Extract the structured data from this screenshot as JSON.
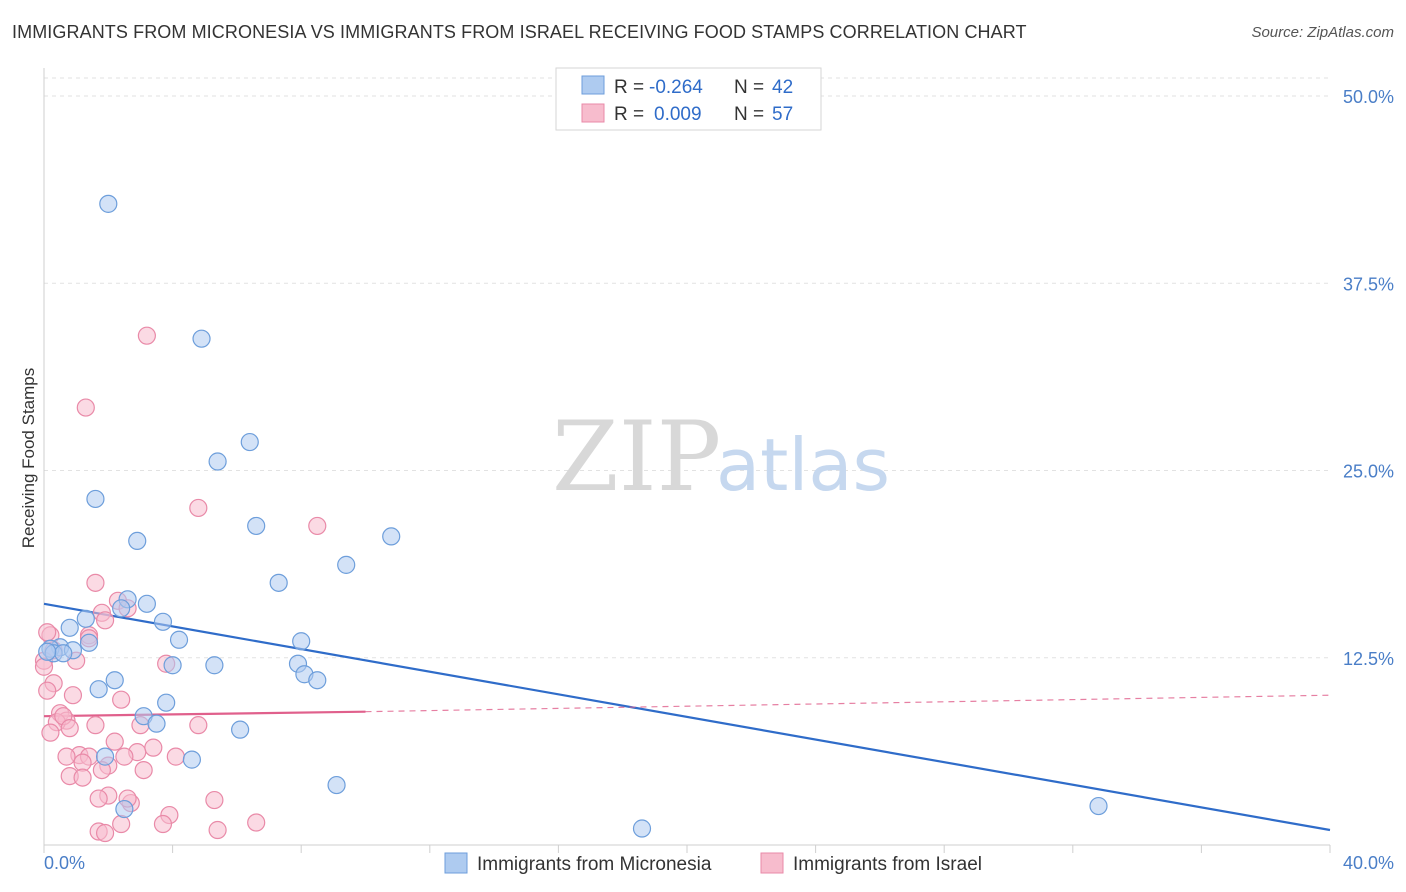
{
  "title": "IMMIGRANTS FROM MICRONESIA VS IMMIGRANTS FROM ISRAEL RECEIVING FOOD STAMPS CORRELATION CHART",
  "source": "Source: ZipAtlas.com",
  "watermark": {
    "zip": "ZIP",
    "atlas": "atlas"
  },
  "colors": {
    "micronesia_fill": "#aecbf0",
    "micronesia_stroke": "#6d9edb",
    "micronesia_line": "#2f6cc9",
    "israel_fill": "#f7bccd",
    "israel_stroke": "#e98aa8",
    "israel_line": "#e0608c",
    "grid": "#e2e2e2",
    "axis_text": "#4a7ec7"
  },
  "legend": {
    "row1": {
      "r_label": "R =",
      "r_value": "-0.264",
      "n_label": "N =",
      "n_value": "42"
    },
    "row2": {
      "r_label": "R =",
      "r_value": "0.009",
      "n_label": "N =",
      "n_value": "57"
    }
  },
  "chart_data": {
    "type": "scatter",
    "title": "IMMIGRANTS FROM MICRONESIA VS IMMIGRANTS FROM ISRAEL RECEIVING FOOD STAMPS CORRELATION CHART",
    "xlabel": "",
    "ylabel": "Receiving Food Stamps",
    "xlim": [
      0,
      40
    ],
    "ylim": [
      0,
      50
    ],
    "x_tick_labels": {
      "left": "0.0%",
      "right": "40.0%"
    },
    "y_ticks": [
      12.5,
      25.0,
      37.5,
      50.0
    ],
    "y_tick_labels": [
      "12.5%",
      "25.0%",
      "37.5%",
      "50.0%"
    ],
    "grid": true,
    "legend_position": "top-center",
    "series": [
      {
        "name": "Immigrants from Micronesia",
        "color": "#6d9edb",
        "trend": {
          "x": [
            0,
            40
          ],
          "y": [
            16.1,
            1.0
          ],
          "style": "solid"
        },
        "points": [
          [
            2.0,
            42.8
          ],
          [
            4.9,
            33.8
          ],
          [
            6.4,
            26.9
          ],
          [
            5.4,
            25.6
          ],
          [
            1.6,
            23.1
          ],
          [
            6.6,
            21.3
          ],
          [
            10.8,
            20.6
          ],
          [
            2.9,
            20.3
          ],
          [
            9.4,
            18.7
          ],
          [
            7.3,
            17.5
          ],
          [
            2.6,
            16.4
          ],
          [
            3.2,
            16.1
          ],
          [
            2.4,
            15.8
          ],
          [
            1.3,
            15.1
          ],
          [
            0.8,
            14.5
          ],
          [
            3.7,
            14.9
          ],
          [
            4.2,
            13.7
          ],
          [
            1.4,
            13.5
          ],
          [
            8.0,
            13.6
          ],
          [
            0.5,
            13.2
          ],
          [
            0.9,
            13.0
          ],
          [
            0.2,
            13.1
          ],
          [
            0.3,
            12.8
          ],
          [
            0.6,
            12.8
          ],
          [
            4.0,
            12.0
          ],
          [
            5.3,
            12.0
          ],
          [
            7.9,
            12.1
          ],
          [
            8.1,
            11.4
          ],
          [
            8.5,
            11.0
          ],
          [
            2.2,
            11.0
          ],
          [
            1.7,
            10.4
          ],
          [
            3.8,
            9.5
          ],
          [
            3.1,
            8.6
          ],
          [
            3.5,
            8.1
          ],
          [
            6.1,
            7.7
          ],
          [
            1.9,
            5.9
          ],
          [
            4.6,
            5.7
          ],
          [
            9.1,
            4.0
          ],
          [
            2.5,
            2.4
          ],
          [
            18.6,
            1.1
          ],
          [
            32.8,
            2.6
          ],
          [
            0.1,
            12.9
          ]
        ]
      },
      {
        "name": "Immigrants from Israel",
        "color": "#e98aa8",
        "trend": {
          "x": [
            0,
            10
          ],
          "y": [
            8.6,
            8.9
          ],
          "style": "solid",
          "extended": {
            "x": [
              10,
              40
            ],
            "y": [
              8.9,
              10.0
            ],
            "style": "dashed"
          }
        },
        "points": [
          [
            3.2,
            34.0
          ],
          [
            1.3,
            29.2
          ],
          [
            4.8,
            22.5
          ],
          [
            8.5,
            21.3
          ],
          [
            1.6,
            17.5
          ],
          [
            2.3,
            16.3
          ],
          [
            1.8,
            15.5
          ],
          [
            2.6,
            15.8
          ],
          [
            1.9,
            15.0
          ],
          [
            0.2,
            14.0
          ],
          [
            1.4,
            14.0
          ],
          [
            0.3,
            13.0
          ],
          [
            1.4,
            13.8
          ],
          [
            0.0,
            12.3
          ],
          [
            1.0,
            12.3
          ],
          [
            3.8,
            12.1
          ],
          [
            0.3,
            10.8
          ],
          [
            0.1,
            10.3
          ],
          [
            0.9,
            10.0
          ],
          [
            2.4,
            9.7
          ],
          [
            0.5,
            8.8
          ],
          [
            0.7,
            8.3
          ],
          [
            0.4,
            8.2
          ],
          [
            0.6,
            8.6
          ],
          [
            1.6,
            8.0
          ],
          [
            3.0,
            8.0
          ],
          [
            4.8,
            8.0
          ],
          [
            0.2,
            7.5
          ],
          [
            0.8,
            7.8
          ],
          [
            2.2,
            6.9
          ],
          [
            3.4,
            6.5
          ],
          [
            2.9,
            6.2
          ],
          [
            1.1,
            6.0
          ],
          [
            1.4,
            5.9
          ],
          [
            2.5,
            5.9
          ],
          [
            0.7,
            5.9
          ],
          [
            4.1,
            5.9
          ],
          [
            1.2,
            5.5
          ],
          [
            2.0,
            5.3
          ],
          [
            1.8,
            5.0
          ],
          [
            3.1,
            5.0
          ],
          [
            0.8,
            4.6
          ],
          [
            1.2,
            4.5
          ],
          [
            2.0,
            3.3
          ],
          [
            1.7,
            3.1
          ],
          [
            2.7,
            2.8
          ],
          [
            5.3,
            3.0
          ],
          [
            2.6,
            3.1
          ],
          [
            3.9,
            2.0
          ],
          [
            6.6,
            1.5
          ],
          [
            2.4,
            1.4
          ],
          [
            3.7,
            1.4
          ],
          [
            1.7,
            0.9
          ],
          [
            5.4,
            1.0
          ],
          [
            1.9,
            0.8
          ],
          [
            0.1,
            14.2
          ],
          [
            0.0,
            11.9
          ]
        ]
      }
    ]
  }
}
